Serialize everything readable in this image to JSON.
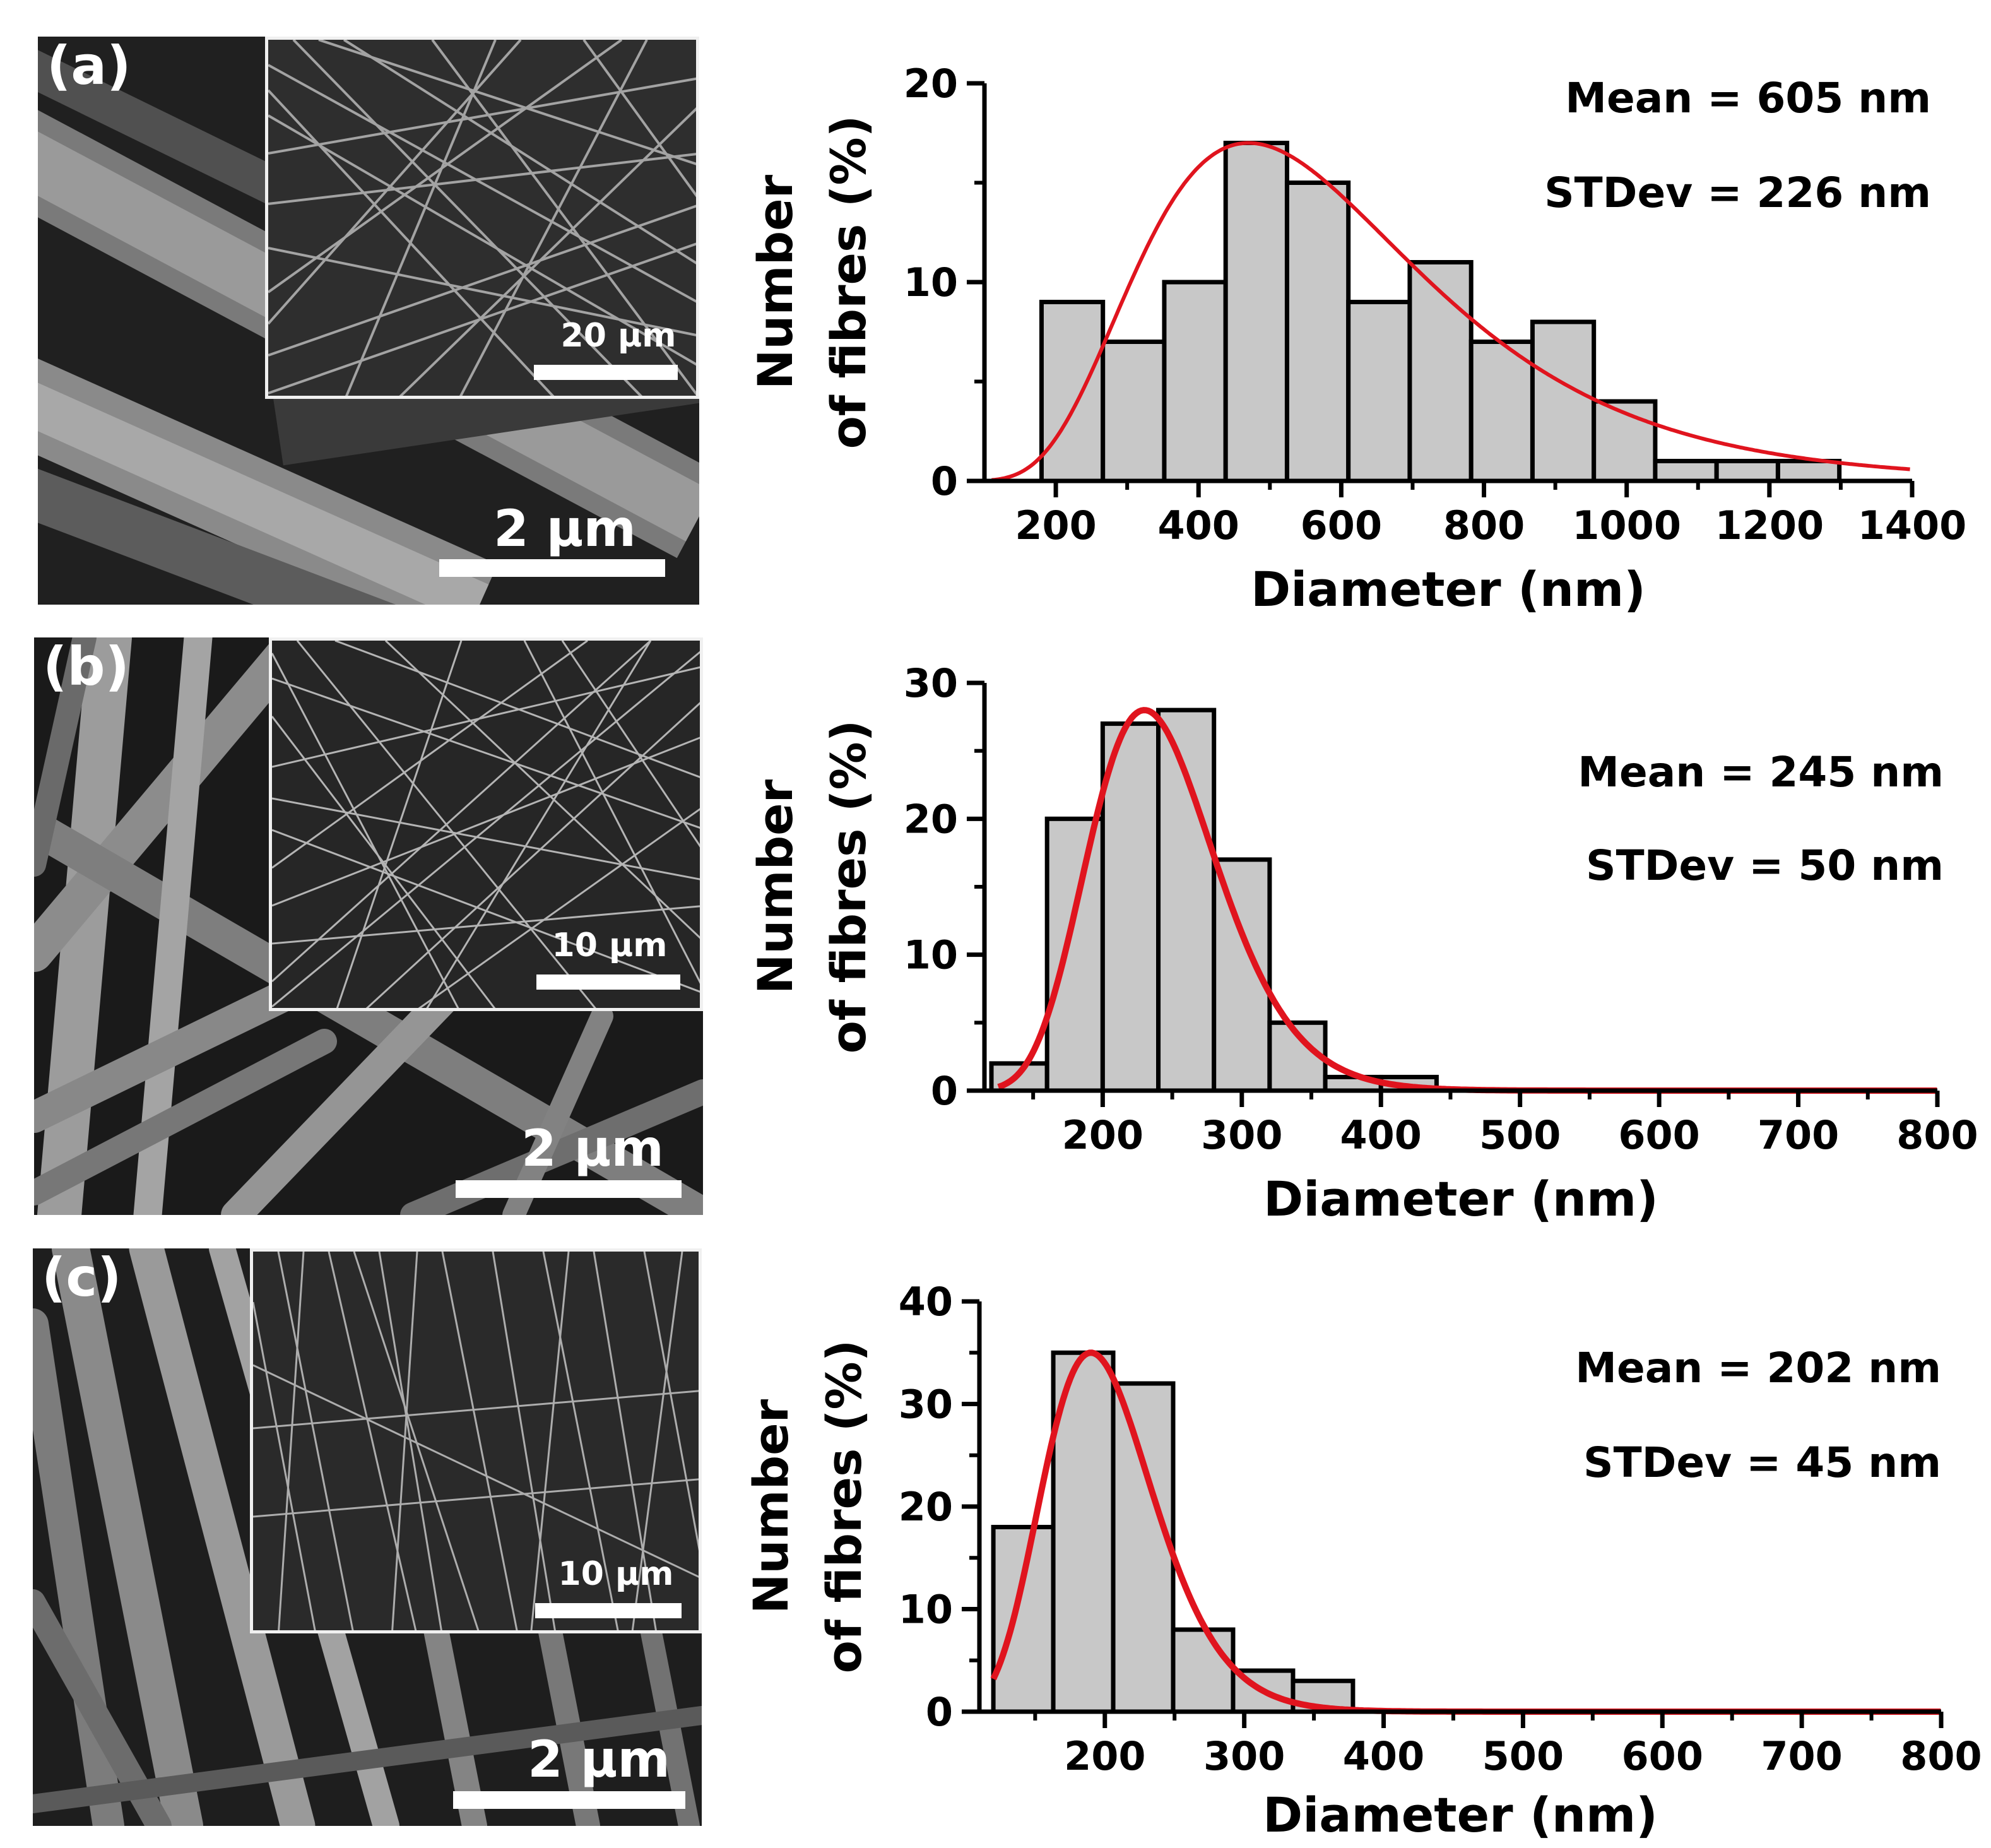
{
  "panels": [
    {
      "label": "(a)",
      "main_scale": "2 μm",
      "inset_scale": "20 μm",
      "stats": {
        "mean": "Mean = 605 nm",
        "stdev": "STDev = 226 nm"
      }
    },
    {
      "label": "(b)",
      "main_scale": "2 μm",
      "inset_scale": "10 μm",
      "stats": {
        "mean": "Mean = 245 nm",
        "stdev": "STDev = 50 nm"
      }
    },
    {
      "label": "(c)",
      "main_scale": "2 μm",
      "inset_scale": "10 μm",
      "stats": {
        "mean": "Mean = 202 nm",
        "stdev": "STDev = 45 nm"
      }
    }
  ],
  "colors": {
    "bar_fill": "#c8c8c8",
    "bar_stroke": "#000000",
    "fit_line": "#e0141e"
  },
  "chart_data": [
    {
      "type": "bar",
      "title": "",
      "xlabel": "Diameter (nm)",
      "ylabel_line1": "Number",
      "ylabel_line2": "of fibres (%)",
      "xlim": [
        100,
        1400
      ],
      "ylim": [
        0,
        20
      ],
      "xticks": [
        200,
        400,
        600,
        800,
        1000,
        1200,
        1400
      ],
      "yticks": [
        0,
        10,
        20
      ],
      "bin_width": 86,
      "bin_starts": [
        180,
        266,
        352,
        438,
        524,
        610,
        696,
        782,
        868,
        954,
        1040,
        1126,
        1212
      ],
      "values": [
        9,
        7,
        10,
        17,
        15,
        9,
        11,
        7,
        8,
        4,
        1,
        1,
        1
      ],
      "fit": {
        "type": "lognormal",
        "peak_x": 470,
        "peak_y": 17
      }
    },
    {
      "type": "bar",
      "title": "",
      "xlabel": "Diameter (nm)",
      "ylabel_line1": "Number",
      "ylabel_line2": "of fibres (%)",
      "xlim": [
        115,
        800
      ],
      "ylim": [
        0,
        30
      ],
      "xticks": [
        200,
        300,
        400,
        500,
        600,
        700,
        800
      ],
      "yticks": [
        0,
        10,
        20,
        30
      ],
      "bin_width": 40,
      "bin_starts": [
        120,
        160,
        200,
        240,
        280,
        320,
        360,
        400
      ],
      "values": [
        2,
        20,
        27,
        28,
        17,
        5,
        1,
        1
      ],
      "fit": {
        "type": "lognormal",
        "peak_x": 230,
        "peak_y": 28
      }
    },
    {
      "type": "bar",
      "title": "",
      "xlabel": "Diameter (nm)",
      "ylabel_line1": "Number",
      "ylabel_line2": "of fibres (%)",
      "xlim": [
        110,
        800
      ],
      "ylim": [
        0,
        40
      ],
      "xticks": [
        200,
        300,
        400,
        500,
        600,
        700,
        800
      ],
      "yticks": [
        0,
        10,
        20,
        30,
        40
      ],
      "bin_width": 43,
      "bin_starts": [
        120,
        163,
        206,
        249,
        292,
        335
      ],
      "values": [
        18,
        35,
        32,
        8,
        4,
        3
      ],
      "fit": {
        "type": "lognormal",
        "peak_x": 190,
        "peak_y": 35
      }
    }
  ]
}
